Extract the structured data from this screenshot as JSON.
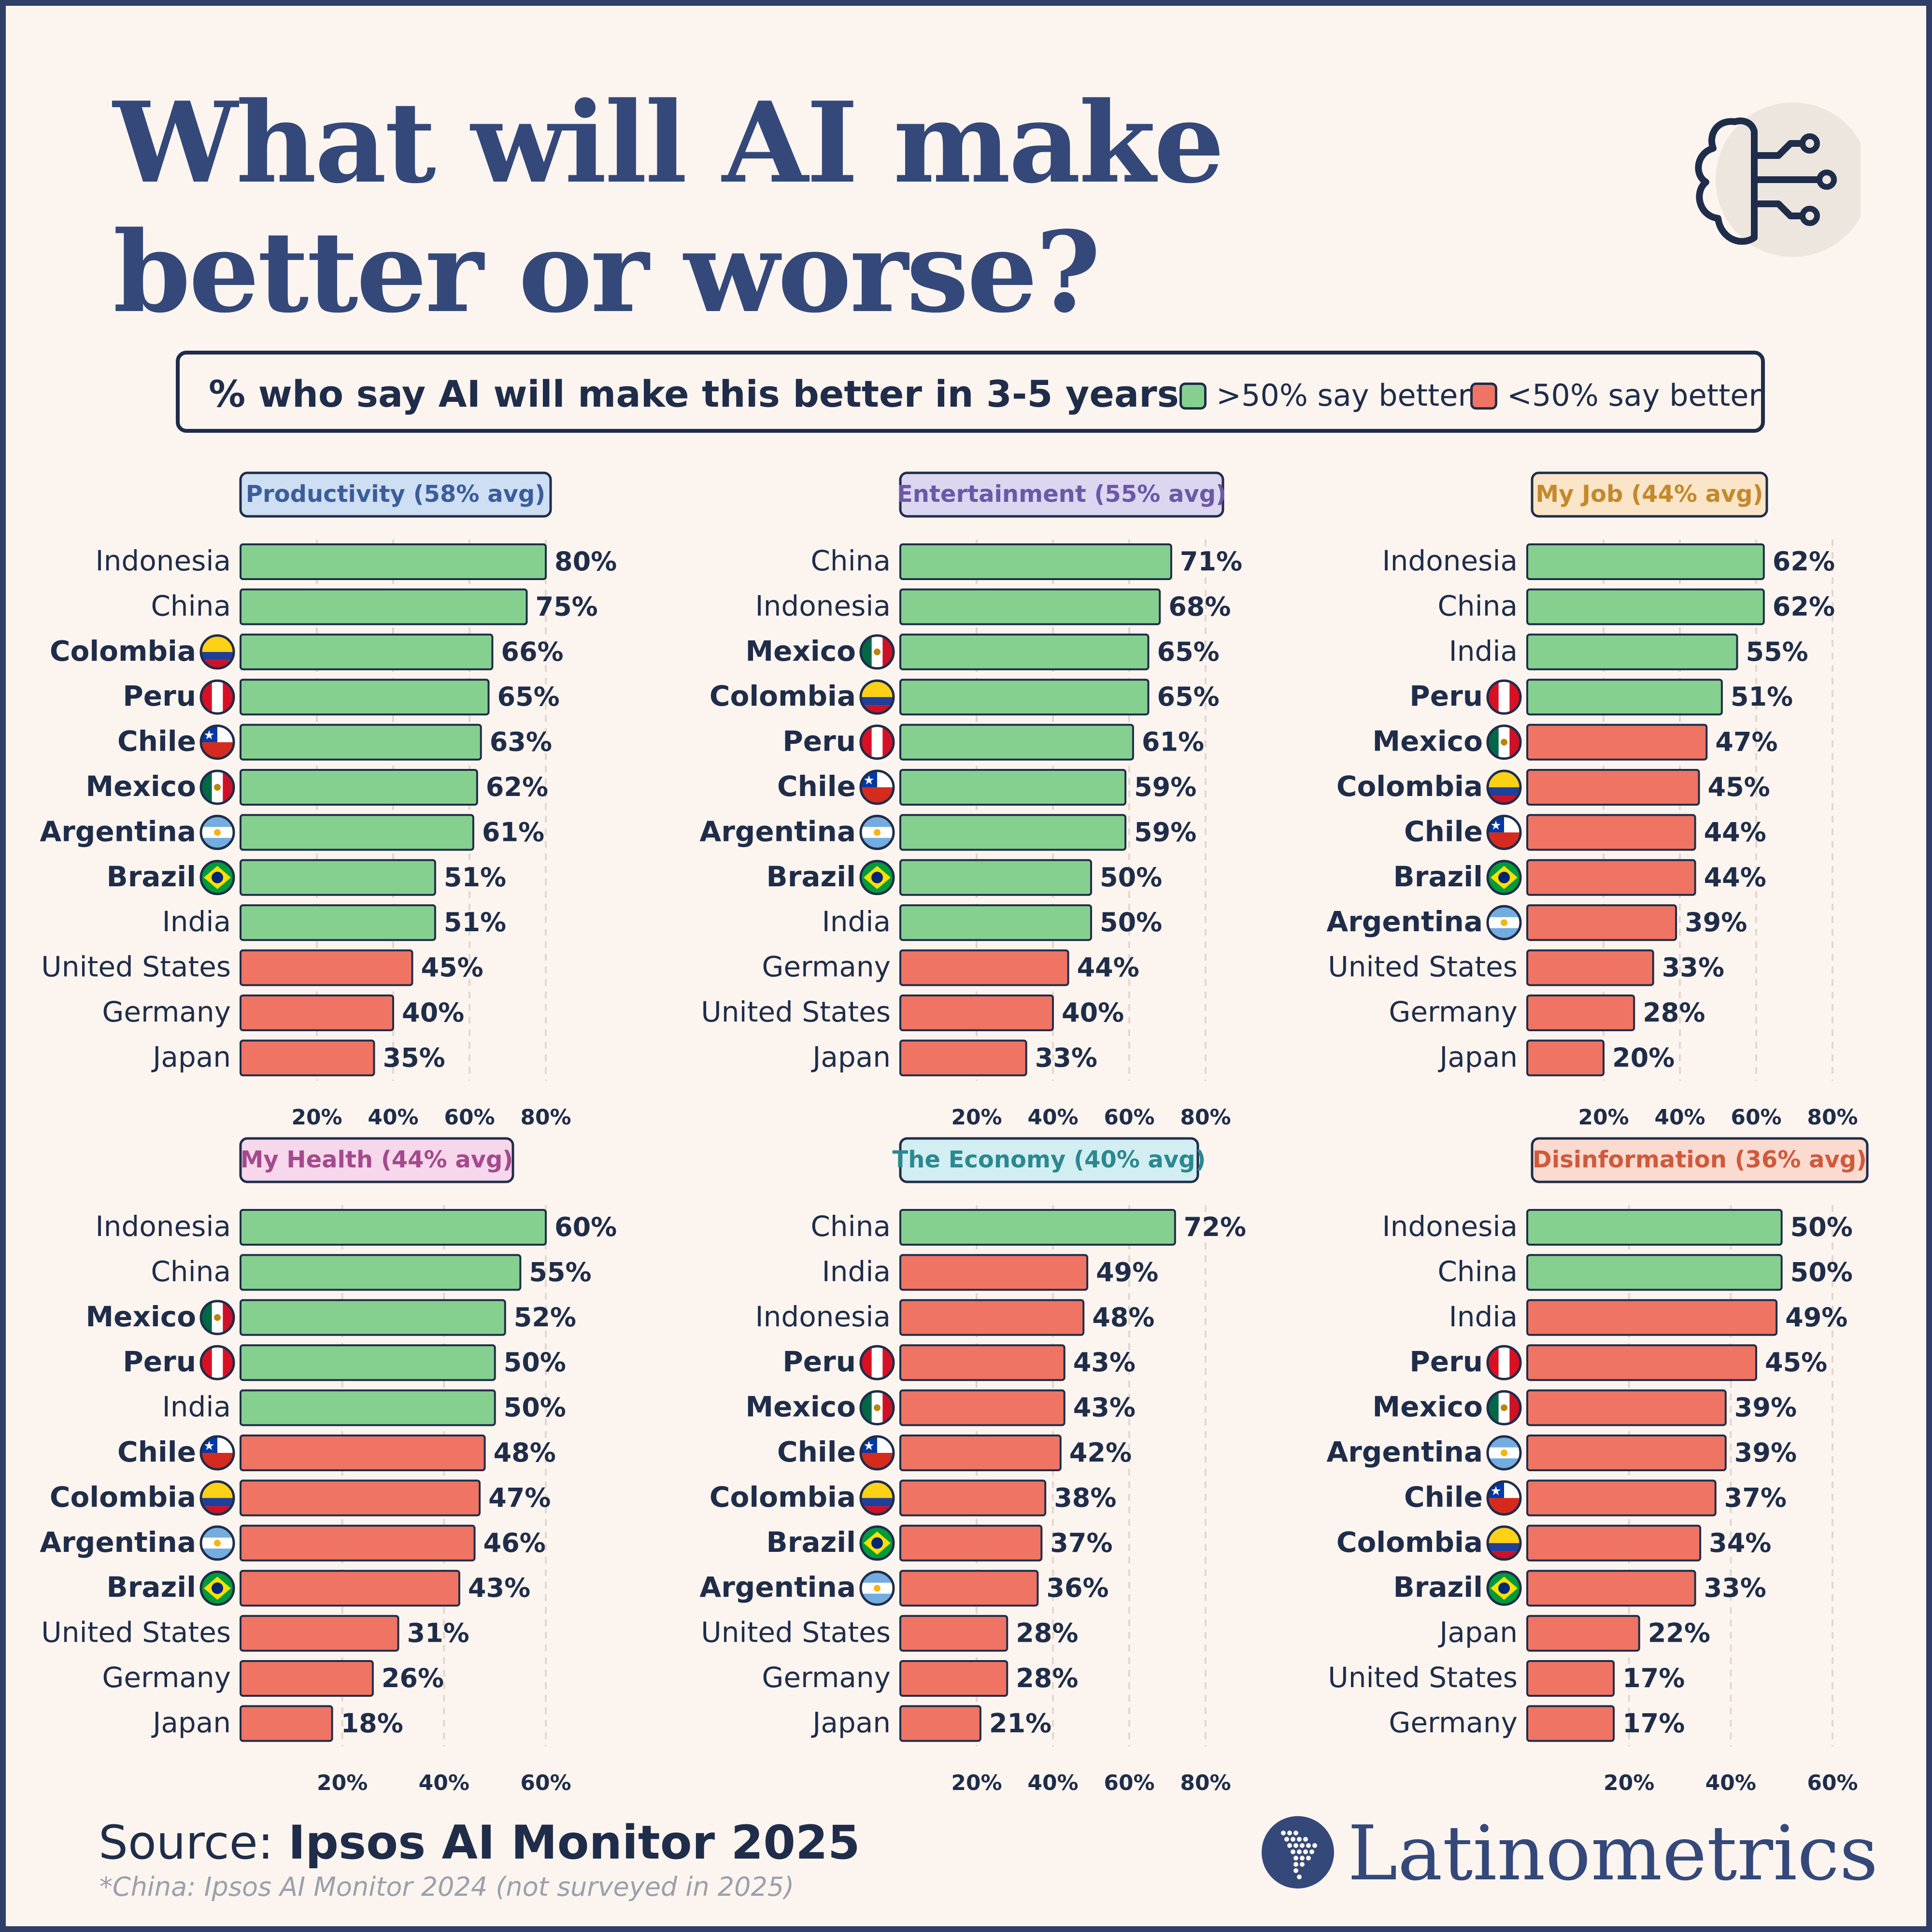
{
  "title": "What will AI make better or worse?",
  "legend": {
    "title": "% who say AI will make this better in 3-5 years",
    "items": [
      {
        "label": ">50% say better",
        "color": "#86d08f"
      },
      {
        "label": "<50% say better",
        "color": "#ef7463"
      }
    ]
  },
  "colors": {
    "better": "#86d08f",
    "worse": "#ef7463",
    "outline": "#1f2d4a",
    "text": "#1f2d4a",
    "title": "#34487a",
    "background": "#fcf5ef"
  },
  "flag_icons": {
    "Colombia": "colombia-flag-icon",
    "Peru": "peru-flag-icon",
    "Chile": "chile-flag-icon",
    "Mexico": "mexico-flag-icon",
    "Argentina": "argentina-flag-icon",
    "Brazil": "brazil-flag-icon"
  },
  "brain_icon": "brain-circuit-icon",
  "footer": {
    "source_prefix": "Source:",
    "source_name": "Ipsos AI Monitor 2025",
    "note": "*China: Ipsos AI Monitor 2024 (not surveyed in 2025)",
    "brand": "Latinometrics",
    "brand_icon": "latin-america-map-icon"
  },
  "chart_data": [
    {
      "type": "bar",
      "title": "Productivity (58% avg)",
      "title_bg": "#cfdff3",
      "title_color": "#3c5d9c",
      "categories": [
        "Indonesia",
        "China",
        "Colombia",
        "Peru",
        "Chile",
        "Mexico",
        "Argentina",
        "Brazil",
        "India",
        "United States",
        "Germany",
        "Japan"
      ],
      "values": [
        80,
        75,
        66,
        65,
        63,
        62,
        61,
        51,
        51,
        45,
        40,
        35
      ],
      "xticks": [
        "20%",
        "40%",
        "60%",
        "80%"
      ],
      "xlim": [
        0,
        80
      ]
    },
    {
      "type": "bar",
      "title": "Entertainment (55% avg)",
      "title_bg": "#ddd6f0",
      "title_color": "#6a58a8",
      "categories": [
        "China",
        "Indonesia",
        "Mexico",
        "Colombia",
        "Peru",
        "Chile",
        "Argentina",
        "Brazil",
        "India",
        "Germany",
        "United States",
        "Japan"
      ],
      "values": [
        71,
        68,
        65,
        65,
        61,
        59,
        59,
        50,
        50,
        44,
        40,
        33
      ],
      "xticks": [
        "20%",
        "40%",
        "60%",
        "80%"
      ],
      "xlim": [
        0,
        80
      ]
    },
    {
      "type": "bar",
      "title": "My Job (44% avg)",
      "title_bg": "#fbe5c8",
      "title_color": "#c3892c",
      "categories": [
        "Indonesia",
        "China",
        "India",
        "Peru",
        "Mexico",
        "Colombia",
        "Chile",
        "Brazil",
        "Argentina",
        "United States",
        "Germany",
        "Japan"
      ],
      "values": [
        62,
        62,
        55,
        51,
        47,
        45,
        44,
        44,
        39,
        33,
        28,
        20
      ],
      "xticks": [
        "20%",
        "40%",
        "60%",
        "80%"
      ],
      "xlim": [
        0,
        80
      ]
    },
    {
      "type": "bar",
      "title": "My Health (44% avg)",
      "title_bg": "#f6d7ec",
      "title_color": "#a44a8c",
      "categories": [
        "Indonesia",
        "China",
        "Mexico",
        "Peru",
        "India",
        "Chile",
        "Colombia",
        "Argentina",
        "Brazil",
        "United States",
        "Germany",
        "Japan"
      ],
      "values": [
        60,
        55,
        52,
        50,
        50,
        48,
        47,
        46,
        43,
        31,
        26,
        18
      ],
      "xticks": [
        "20%",
        "40%",
        "60%"
      ],
      "xlim": [
        0,
        60
      ]
    },
    {
      "type": "bar",
      "title": "The Economy (40% avg)",
      "title_bg": "#d2eef2",
      "title_color": "#2b8890",
      "categories": [
        "China",
        "India",
        "Indonesia",
        "Peru",
        "Mexico",
        "Chile",
        "Colombia",
        "Brazil",
        "Argentina",
        "United States",
        "Germany",
        "Japan"
      ],
      "values": [
        72,
        49,
        48,
        43,
        43,
        42,
        38,
        37,
        36,
        28,
        28,
        21
      ],
      "xticks": [
        "20%",
        "40%",
        "60%",
        "80%"
      ],
      "xlim": [
        0,
        80
      ]
    },
    {
      "type": "bar",
      "title": "Disinformation (36% avg)",
      "title_bg": "#fbdad0",
      "title_color": "#cf5a3c",
      "categories": [
        "Indonesia",
        "China",
        "India",
        "Peru",
        "Mexico",
        "Argentina",
        "Chile",
        "Colombia",
        "Brazil",
        "Japan",
        "United States",
        "Germany"
      ],
      "values": [
        50,
        50,
        49,
        45,
        39,
        39,
        37,
        34,
        33,
        22,
        17,
        17
      ],
      "xticks": [
        "20%",
        "40%",
        "60%"
      ],
      "xlim": [
        0,
        60
      ]
    }
  ]
}
